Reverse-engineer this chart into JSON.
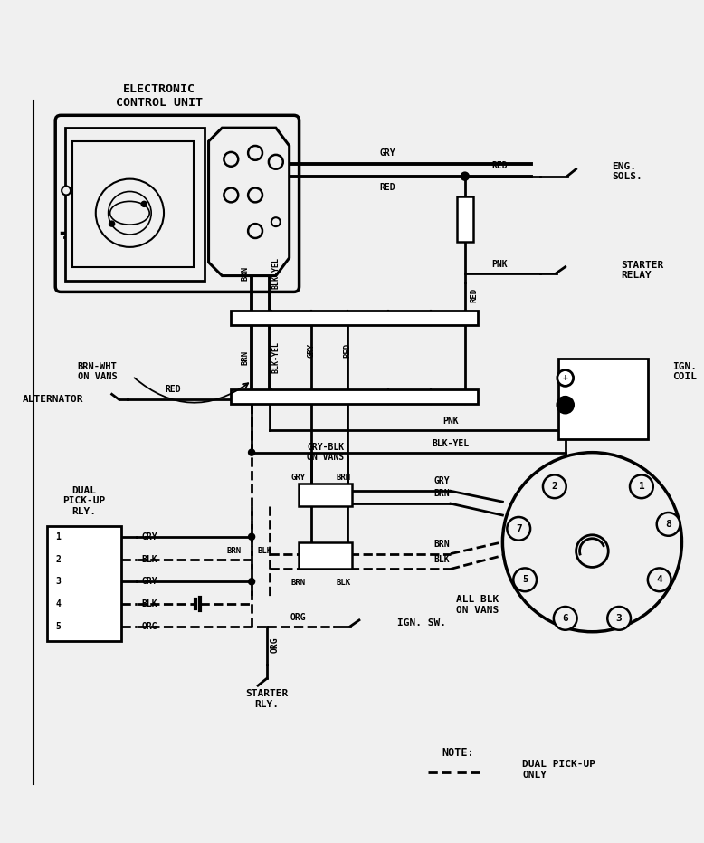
{
  "bg_color": "#f0f0f0",
  "lw_thin": 1.5,
  "lw_med": 2.0,
  "lw_thick": 2.8,
  "labels": {
    "ecu_title": "ELECTRONIC\nCONTROL UNIT",
    "eng_sols": "ENG.\nSOLS.",
    "starter_relay": "STARTER\nRELAY",
    "ign_coil": "IGN.\nCOIL",
    "dual_pickup": "DUAL\nPICK-UP\nRLY.",
    "alternator": "ALTERNATOR",
    "brn_wht_on_vans": "BRN-WHT\nON VANS",
    "gry_blk_on_vans": "GRY-BLK\nON VANS",
    "all_blk_on_vans": "ALL BLK\nON VANS",
    "ign_sw": "IGN. SW.",
    "starter_rly": "STARTER\nRLY.",
    "note": "NOTE:",
    "dual_only": "DUAL PICK-UP\nONLY"
  }
}
